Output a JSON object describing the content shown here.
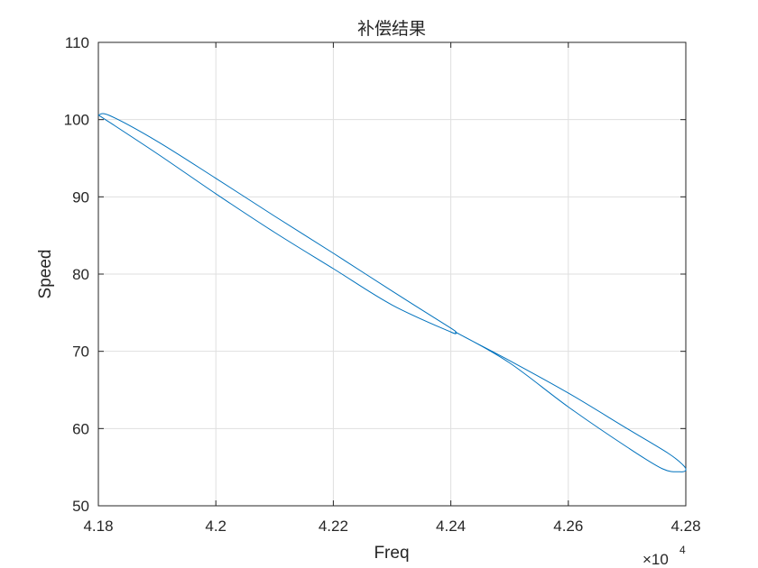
{
  "chart_data": {
    "type": "line",
    "title": "补偿结果",
    "xlabel": "Freq",
    "ylabel": "Speed",
    "x_exponent_label": "×10",
    "x_exponent_power": "4",
    "x_scale": 10000,
    "xlim": [
      41800,
      42800
    ],
    "ylim": [
      50,
      110
    ],
    "x_ticks": [
      41800,
      42000,
      42200,
      42400,
      42600,
      42800
    ],
    "x_tick_labels": [
      "4.18",
      "4.2",
      "4.22",
      "4.24",
      "4.26",
      "4.28"
    ],
    "y_ticks": [
      50,
      60,
      70,
      80,
      90,
      100,
      110
    ],
    "y_tick_labels": [
      "50",
      "60",
      "70",
      "80",
      "90",
      "100",
      "110"
    ],
    "grid": true,
    "color": "#0072BD",
    "series": [
      {
        "x": [
          41800,
          41900,
          42000,
          42100,
          42200,
          42300,
          42400,
          42415,
          42500,
          42600,
          42700,
          42760,
          42790,
          42800,
          42795,
          42770,
          42700,
          42600,
          42500,
          42415,
          42400,
          42300,
          42200,
          42100,
          42000,
          41900,
          41820,
          41800
        ],
        "y": [
          100.6,
          95.6,
          90.4,
          85.4,
          80.7,
          76.0,
          72.5,
          72.2,
          68.5,
          62.8,
          57.6,
          54.8,
          54.4,
          54.6,
          55.3,
          56.8,
          60.0,
          64.6,
          68.8,
          72.2,
          73.0,
          77.8,
          82.7,
          87.5,
          92.4,
          97.2,
          100.5,
          100.6
        ]
      }
    ]
  }
}
